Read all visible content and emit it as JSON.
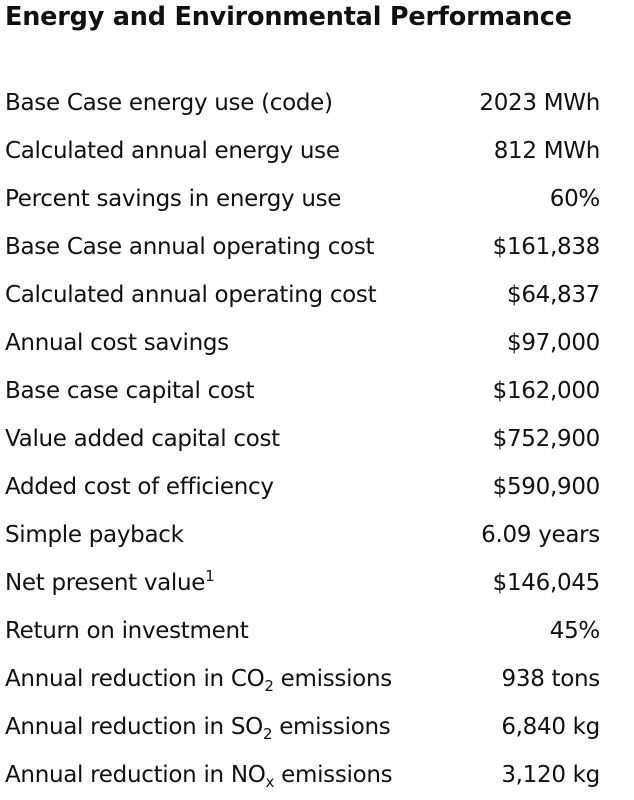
{
  "title": "Energy and Environmental Performance",
  "rows": [
    {
      "label": "Base Case energy use (code)",
      "value": "2023 MWh"
    },
    {
      "label": "Calculated annual energy use",
      "value": "812 MWh"
    },
    {
      "label": "Percent savings in energy use",
      "value": "60%"
    },
    {
      "label": "Base Case annual operating cost",
      "value": "$161,838"
    },
    {
      "label": "Calculated annual operating cost",
      "value": "$64,837"
    },
    {
      "label": "Annual cost savings",
      "value": "$97,000"
    },
    {
      "label": "Base case capital cost",
      "value": "$162,000"
    },
    {
      "label": "Value added capital cost",
      "value": "$752,900"
    },
    {
      "label": "Added cost of efficiency",
      "value": "$590,900"
    },
    {
      "label": "Simple payback",
      "value": "6.09 years"
    },
    {
      "label": "Net present value",
      "sup": "1",
      "value": "$146,045"
    },
    {
      "label": "Return on investment",
      "value": "45%"
    },
    {
      "label_pre": "Annual reduction in CO",
      "sub": "2",
      "label_post": " emissions",
      "value": "938 tons"
    },
    {
      "label_pre": "Annual reduction in SO",
      "sub": "2",
      "label_post": " emissions",
      "value": "6,840 kg"
    },
    {
      "label_pre": "Annual reduction in NO",
      "sub": "x",
      "label_post": " emissions",
      "value": "3,120 kg"
    }
  ]
}
